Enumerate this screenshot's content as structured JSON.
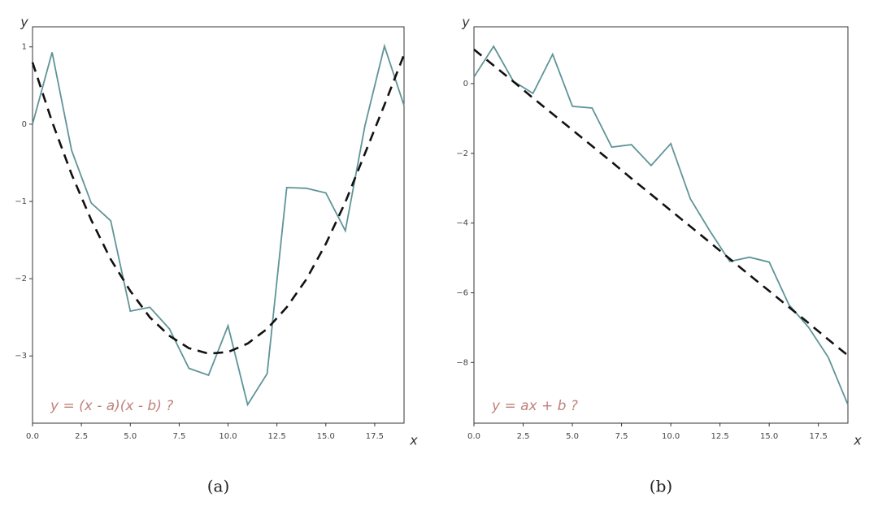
{
  "chart_data": [
    {
      "type": "line",
      "ylabel": "y",
      "xlabel": "x",
      "annotation": "y = (x - a)(x - b) ?",
      "caption": "(a)",
      "x": [
        0,
        1,
        2,
        3,
        4,
        5,
        6,
        7,
        8,
        9,
        10,
        11,
        12,
        13,
        14,
        15,
        16,
        17,
        18,
        19
      ],
      "series": [
        {
          "color": "#5f9498",
          "style": "solid",
          "values": [
            0.0,
            0.93,
            -0.34,
            -1.02,
            -1.25,
            -2.42,
            -2.37,
            -2.65,
            -3.16,
            -3.25,
            -2.61,
            -3.63,
            -3.23,
            -0.82,
            -0.83,
            -0.89,
            -1.38,
            -0.02,
            1.01,
            0.24
          ]
        },
        {
          "color": "#111111",
          "style": "dashed",
          "values": [
            0.8,
            0.03,
            -0.65,
            -1.24,
            -1.75,
            -2.16,
            -2.5,
            -2.74,
            -2.9,
            -2.97,
            -2.95,
            -2.84,
            -2.65,
            -2.37,
            -2.01,
            -1.55,
            -1.01,
            -0.38,
            0.25,
            0.9
          ]
        }
      ],
      "xlim": [
        0,
        19
      ],
      "ylim": [
        -3.87,
        1.26
      ],
      "xticks": [
        {
          "value": 0,
          "label": "0.0"
        },
        {
          "value": 2.5,
          "label": "2.5"
        },
        {
          "value": 5,
          "label": "5.0"
        },
        {
          "value": 7.5,
          "label": "7.5"
        },
        {
          "value": 10,
          "label": "10.0"
        },
        {
          "value": 12.5,
          "label": "12.5"
        },
        {
          "value": 15,
          "label": "15.0"
        },
        {
          "value": 17.5,
          "label": "17.5"
        }
      ],
      "yticks": [
        1,
        0,
        {
          "value": -1,
          "label": "−1"
        },
        {
          "value": -2,
          "label": "−2"
        },
        {
          "value": -3,
          "label": "−3"
        }
      ]
    },
    {
      "type": "line",
      "ylabel": "y",
      "xlabel": "x",
      "annotation": "y = ax + b ?",
      "caption": "(b)",
      "x": [
        0,
        1,
        2,
        3,
        4,
        5,
        6,
        7,
        8,
        9,
        10,
        11,
        12,
        13,
        14,
        15,
        16,
        17,
        18,
        19
      ],
      "series": [
        {
          "color": "#5f9498",
          "style": "solid",
          "values": [
            0.19,
            1.07,
            0.07,
            -0.28,
            0.84,
            -0.65,
            -0.7,
            -1.82,
            -1.75,
            -2.35,
            -1.72,
            -3.31,
            -4.24,
            -5.1,
            -4.98,
            -5.12,
            -6.34,
            -6.99,
            -7.85,
            -9.21
          ]
        },
        {
          "color": "#111111",
          "style": "dashed",
          "values": [
            0.98,
            0.52,
            0.06,
            -0.41,
            -0.87,
            -1.33,
            -1.79,
            -2.25,
            -2.72,
            -3.18,
            -3.64,
            -4.1,
            -4.56,
            -5.03,
            -5.49,
            -5.95,
            -6.41,
            -6.87,
            -7.34,
            -7.8
          ]
        }
      ],
      "xlim": [
        0,
        19
      ],
      "ylim": [
        -9.74,
        1.63
      ],
      "xticks": [
        {
          "value": 0,
          "label": "0.0"
        },
        {
          "value": 2.5,
          "label": "2.5"
        },
        {
          "value": 5,
          "label": "5.0"
        },
        {
          "value": 7.5,
          "label": "7.5"
        },
        {
          "value": 10,
          "label": "10.0"
        },
        {
          "value": 12.5,
          "label": "12.5"
        },
        {
          "value": 15,
          "label": "15.0"
        },
        {
          "value": 17.5,
          "label": "17.5"
        }
      ],
      "yticks": [
        0,
        {
          "value": -2,
          "label": "−2"
        },
        {
          "value": -4,
          "label": "−4"
        },
        {
          "value": -6,
          "label": "−6"
        },
        {
          "value": -8,
          "label": "−8"
        }
      ]
    }
  ]
}
